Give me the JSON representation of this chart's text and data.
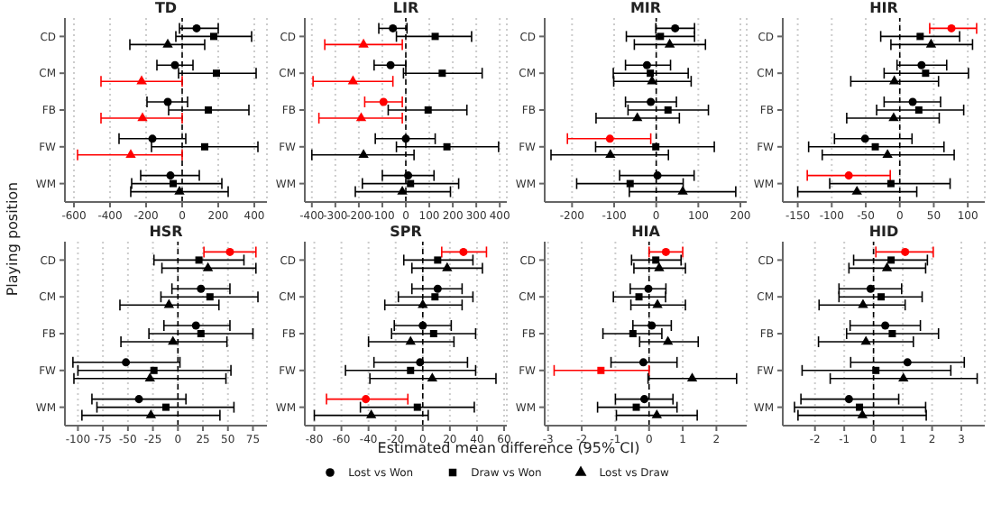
{
  "chart_data": [
    {
      "type": "scatter",
      "title": "TD",
      "ylabel": "Playing position",
      "orientation": "horizontal",
      "categories": [
        "CD",
        "CM",
        "FB",
        "FW",
        "WM"
      ],
      "xlim": [
        -650,
        470
      ],
      "xticks": [
        -600,
        -400,
        -200,
        0,
        200,
        400
      ],
      "grid": "x",
      "legend": "bottom",
      "ref_lines": [
        {
          "axis": "x",
          "value": 0,
          "color": "#000000",
          "line_style": "dashed"
        }
      ],
      "series": [
        {
          "name": "Lost vs Won",
          "marker": "circle",
          "color": "#000000",
          "values": [
            80,
            -40,
            -80,
            -165,
            -65
          ],
          "errors": [
            [
              -15,
              200
            ],
            [
              -140,
              60
            ],
            [
              -195,
              30
            ],
            [
              -350,
              20
            ],
            [
              -230,
              95
            ]
          ]
        },
        {
          "name": "Draw vs Won",
          "marker": "square",
          "color": "#000000",
          "values": [
            175,
            190,
            145,
            125,
            -50
          ],
          "errors": [
            [
              -35,
              385
            ],
            [
              -20,
              410
            ],
            [
              -75,
              370
            ],
            [
              -170,
              420
            ],
            [
              -280,
              220
            ]
          ]
        },
        {
          "name": "Lost vs Draw",
          "marker": "triangle",
          "color": "#000000",
          "colors": [
            "#000000",
            "#ff0000",
            "#ff0000",
            "#ff0000",
            "#000000"
          ],
          "values": [
            -80,
            -225,
            -220,
            -285,
            -15
          ],
          "errors": [
            [
              -290,
              125
            ],
            [
              -450,
              0
            ],
            [
              -450,
              0
            ],
            [
              -580,
              0
            ],
            [
              -285,
              255
            ]
          ]
        }
      ]
    },
    {
      "type": "scatter",
      "title": "LIR",
      "orientation": "horizontal",
      "categories": [
        "CD",
        "CM",
        "FB",
        "FW",
        "WM"
      ],
      "xlim": [
        -430,
        430
      ],
      "xticks": [
        -400,
        -300,
        -200,
        -100,
        0,
        100,
        200,
        300,
        400
      ],
      "grid": "x",
      "ref_lines": [
        {
          "axis": "x",
          "value": 0,
          "color": "#000000",
          "line_style": "dashed"
        }
      ],
      "series": [
        {
          "marker": "circle",
          "colors": [
            "#000000",
            "#000000",
            "#ff0000",
            "#000000",
            "#000000"
          ],
          "values": [
            -55,
            -65,
            -95,
            0,
            10
          ],
          "errors": [
            [
              -115,
              5
            ],
            [
              -135,
              0
            ],
            [
              -175,
              -15
            ],
            [
              -130,
              125
            ],
            [
              -100,
              120
            ]
          ]
        },
        {
          "marker": "square",
          "color": "#000000",
          "values": [
            125,
            155,
            95,
            175,
            20
          ],
          "errors": [
            [
              -40,
              280
            ],
            [
              -10,
              325
            ],
            [
              -75,
              260
            ],
            [
              -40,
              395
            ],
            [
              -185,
              225
            ]
          ]
        },
        {
          "marker": "triangle",
          "colors": [
            "#ff0000",
            "#ff0000",
            "#ff0000",
            "#000000",
            "#000000"
          ],
          "values": [
            -180,
            -225,
            -190,
            -180,
            -15
          ],
          "errors": [
            [
              -345,
              -15
            ],
            [
              -395,
              -55
            ],
            [
              -370,
              -15
            ],
            [
              -400,
              35
            ],
            [
              -215,
              190
            ]
          ]
        }
      ]
    },
    {
      "type": "scatter",
      "title": "MIR",
      "orientation": "horizontal",
      "categories": [
        "CD",
        "CM",
        "FB",
        "FW",
        "WM"
      ],
      "xlim": [
        -265,
        215
      ],
      "xticks": [
        -200,
        -100,
        0,
        100,
        200
      ],
      "grid": "x",
      "ref_lines": [
        {
          "axis": "x",
          "value": 0,
          "color": "#000000",
          "line_style": "dashed"
        }
      ],
      "series": [
        {
          "marker": "circle",
          "colors": [
            "#000000",
            "#000000",
            "#000000",
            "#ff0000",
            "#000000"
          ],
          "values": [
            45,
            -22,
            -13,
            -110,
            3
          ],
          "errors": [
            [
              -1,
              91
            ],
            [
              -73,
              34
            ],
            [
              -73,
              48
            ],
            [
              -211,
              -13
            ],
            [
              -87,
              90
            ]
          ]
        },
        {
          "marker": "square",
          "color": "#000000",
          "values": [
            10,
            -14,
            28,
            -1,
            -62
          ],
          "errors": [
            [
              -71,
              91
            ],
            [
              -102,
              76
            ],
            [
              -67,
              124
            ],
            [
              -144,
              138
            ],
            [
              -189,
              64
            ]
          ]
        },
        {
          "marker": "triangle",
          "color": "#000000",
          "values": [
            32,
            -10,
            -45,
            -109,
            63
          ],
          "errors": [
            [
              -52,
              117
            ],
            [
              -101,
              83
            ],
            [
              -143,
              55
            ],
            [
              -250,
              29
            ],
            [
              -64,
              189
            ]
          ]
        }
      ]
    },
    {
      "type": "scatter",
      "title": "HIR",
      "orientation": "horizontal",
      "categories": [
        "CD",
        "CM",
        "FB",
        "FW",
        "WM"
      ],
      "xlim": [
        -172,
        125
      ],
      "xticks": [
        -150,
        -100,
        -50,
        0,
        50,
        100
      ],
      "grid": "x",
      "ref_lines": [
        {
          "axis": "x",
          "value": 0,
          "color": "#000000",
          "line_style": "dashed"
        }
      ],
      "series": [
        {
          "marker": "circle",
          "colors": [
            "#ff0000",
            "#000000",
            "#000000",
            "#000000",
            "#ff0000"
          ],
          "values": [
            76,
            32,
            19,
            -51,
            -75
          ],
          "errors": [
            [
              44,
              113
            ],
            [
              -4,
              69
            ],
            [
              -23,
              60
            ],
            [
              -96,
              18
            ],
            [
              -136,
              -14
            ]
          ]
        },
        {
          "marker": "square",
          "color": "#000000",
          "values": [
            30,
            38,
            28,
            -36,
            -13
          ],
          "errors": [
            [
              -28,
              88
            ],
            [
              -23,
              101
            ],
            [
              -34,
              94
            ],
            [
              -134,
              65
            ],
            [
              -103,
              74
            ]
          ]
        },
        {
          "marker": "triangle",
          "color": "#000000",
          "values": [
            46,
            -8,
            -9,
            -18,
            -63
          ],
          "errors": [
            [
              -13,
              107
            ],
            [
              -72,
              57
            ],
            [
              -78,
              58
            ],
            [
              -114,
              80
            ],
            [
              -150,
              25
            ]
          ]
        }
      ]
    },
    {
      "type": "scatter",
      "title": "HSR",
      "orientation": "horizontal",
      "categories": [
        "CD",
        "CM",
        "FB",
        "FW",
        "WM"
      ],
      "xlim": [
        -113,
        89
      ],
      "xticks": [
        -100,
        -75,
        -50,
        -25,
        0,
        25,
        50,
        75
      ],
      "grid": "x",
      "ref_lines": [
        {
          "axis": "x",
          "value": 0,
          "color": "#000000",
          "line_style": "dashed"
        }
      ],
      "series": [
        {
          "marker": "circle",
          "colors": [
            "#ff0000",
            "#000000",
            "#000000",
            "#000000",
            "#000000"
          ],
          "values": [
            52,
            23,
            18,
            -52,
            -39
          ],
          "errors": [
            [
              26,
              78
            ],
            [
              -6,
              52
            ],
            [
              -14,
              52
            ],
            [
              -105,
              2
            ],
            [
              -86,
              8
            ]
          ]
        },
        {
          "marker": "square",
          "color": "#000000",
          "values": [
            21,
            32,
            23,
            -24,
            -12
          ],
          "errors": [
            [
              -24,
              66
            ],
            [
              -17,
              80
            ],
            [
              -29,
              75
            ],
            [
              -100,
              53
            ],
            [
              -81,
              56
            ]
          ]
        },
        {
          "marker": "triangle",
          "color": "#000000",
          "values": [
            30,
            -9,
            -5,
            -28,
            -27
          ],
          "errors": [
            [
              -16,
              78
            ],
            [
              -58,
              41
            ],
            [
              -57,
              49
            ],
            [
              -104,
              48
            ],
            [
              -96,
              42
            ]
          ]
        }
      ]
    },
    {
      "type": "scatter",
      "title": "SPR",
      "xlabel": "Estimated mean difference (95% CI)",
      "orientation": "horizontal",
      "categories": [
        "CD",
        "CM",
        "FB",
        "FW",
        "WM"
      ],
      "xlim": [
        -87,
        62
      ],
      "xticks": [
        -80,
        -60,
        -40,
        -20,
        0,
        20,
        40,
        60
      ],
      "grid": "x",
      "ref_lines": [
        {
          "axis": "x",
          "value": 0,
          "color": "#000000",
          "line_style": "dashed"
        }
      ],
      "series": [
        {
          "marker": "circle",
          "colors": [
            "#ff0000",
            "#000000",
            "#000000",
            "#000000",
            "#ff0000"
          ],
          "values": [
            30,
            11,
            0,
            -2,
            -42
          ],
          "errors": [
            [
              14,
              47
            ],
            [
              -8,
              29
            ],
            [
              -21,
              21
            ],
            [
              -36,
              33
            ],
            [
              -71,
              -11
            ]
          ]
        },
        {
          "marker": "square",
          "color": "#000000",
          "values": [
            11,
            9,
            8,
            -9,
            -4
          ],
          "errors": [
            [
              -14,
              37
            ],
            [
              -18,
              37
            ],
            [
              -23,
              39
            ],
            [
              -57,
              39
            ],
            [
              -46,
              38
            ]
          ]
        },
        {
          "marker": "triangle",
          "color": "#000000",
          "values": [
            18,
            0,
            -9,
            7,
            -38
          ],
          "errors": [
            [
              -8,
              44
            ],
            [
              -28,
              29
            ],
            [
              -40,
              23
            ],
            [
              -39,
              54
            ],
            [
              -80,
              4
            ]
          ]
        }
      ]
    },
    {
      "type": "scatter",
      "title": "HIA",
      "orientation": "horizontal",
      "categories": [
        "CD",
        "CM",
        "FB",
        "FW",
        "WM"
      ],
      "xlim": [
        -3.1,
        2.9
      ],
      "xticks": [
        -3,
        -2,
        -1,
        0,
        1,
        2
      ],
      "grid": "x",
      "ref_lines": [
        {
          "axis": "x",
          "value": 0,
          "color": "#000000",
          "line_style": "dashed"
        }
      ],
      "series": [
        {
          "marker": "circle",
          "colors": [
            "#ff0000",
            "#000000",
            "#000000",
            "#000000",
            "#000000"
          ],
          "values": [
            0.5,
            -0.02,
            0.08,
            -0.17,
            -0.14
          ],
          "errors": [
            [
              0,
              1
            ],
            [
              -0.56,
              0.5
            ],
            [
              -0.48,
              0.66
            ],
            [
              -1.13,
              0.83
            ],
            [
              -1,
              0.71
            ]
          ]
        },
        {
          "marker": "square",
          "colors": [
            "#000000",
            "#000000",
            "#000000",
            "#ff0000",
            "#000000"
          ],
          "values": [
            0.2,
            -0.3,
            -0.48,
            -1.43,
            -0.38
          ],
          "errors": [
            [
              -0.52,
              0.95
            ],
            [
              -1.06,
              0.49
            ],
            [
              -1.37,
              0.38
            ],
            [
              -2.82,
              0
            ],
            [
              -1.53,
              0.83
            ]
          ]
        },
        {
          "marker": "triangle",
          "color": "#000000",
          "values": [
            0.3,
            0.25,
            0.56,
            1.28,
            0.23
          ],
          "errors": [
            [
              -0.45,
              1.08
            ],
            [
              -0.54,
              1.08
            ],
            [
              -0.28,
              1.46
            ],
            [
              -0.03,
              2.6
            ],
            [
              -0.97,
              1.43
            ]
          ]
        }
      ]
    },
    {
      "type": "scatter",
      "title": "HID",
      "orientation": "horizontal",
      "categories": [
        "CD",
        "CM",
        "FB",
        "FW",
        "WM"
      ],
      "xlim": [
        -3.1,
        3.8
      ],
      "xticks": [
        -2,
        -1,
        0,
        1,
        2,
        3
      ],
      "grid": "x",
      "ref_lines": [
        {
          "axis": "x",
          "value": 0,
          "color": "#000000",
          "line_style": "dashed"
        }
      ],
      "series": [
        {
          "marker": "circle",
          "colors": [
            "#ff0000",
            "#000000",
            "#000000",
            "#000000",
            "#000000"
          ],
          "values": [
            1.08,
            -0.1,
            0.4,
            1.16,
            -0.84
          ],
          "errors": [
            [
              0.08,
              2.04
            ],
            [
              -1.18,
              0.96
            ],
            [
              -0.8,
              1.6
            ],
            [
              -0.78,
              3.1
            ],
            [
              -2.48,
              0.86
            ]
          ]
        },
        {
          "marker": "square",
          "color": "#000000",
          "values": [
            0.6,
            0.26,
            0.64,
            0.08,
            -0.48
          ],
          "errors": [
            [
              -0.68,
              1.84
            ],
            [
              -1.18,
              1.66
            ],
            [
              -0.92,
              2.22
            ],
            [
              -2.44,
              2.64
            ],
            [
              -2.7,
              1.78
            ]
          ]
        },
        {
          "marker": "triangle",
          "color": "#000000",
          "values": [
            0.46,
            -0.36,
            -0.26,
            1.02,
            -0.38
          ],
          "errors": [
            [
              -0.84,
              1.78
            ],
            [
              -1.86,
              1.08
            ],
            [
              -1.88,
              1.36
            ],
            [
              -1.48,
              3.54
            ],
            [
              -2.58,
              1.8
            ]
          ]
        }
      ]
    }
  ]
}
